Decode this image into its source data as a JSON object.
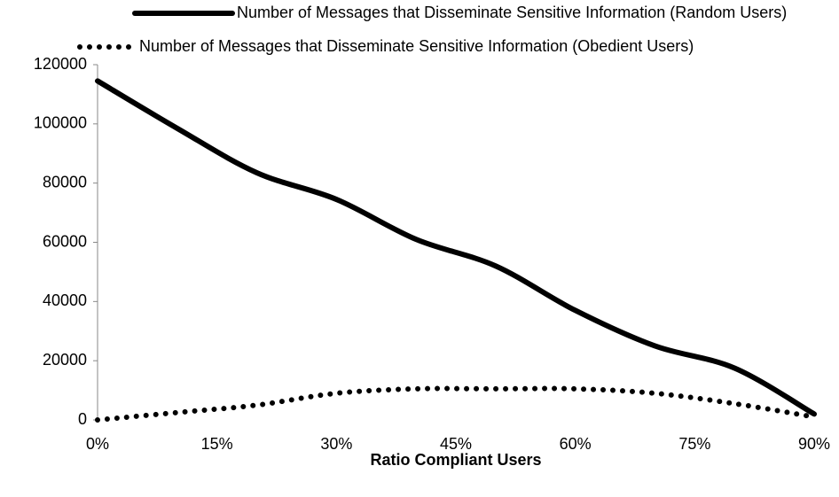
{
  "chart_data": {
    "type": "line",
    "xlabel": "Ratio Compliant Users",
    "x": [
      0,
      10,
      20,
      30,
      40,
      50,
      60,
      70,
      80,
      90
    ],
    "xlim": [
      0,
      90
    ],
    "xticks": [
      {
        "value": 0,
        "label": "0%"
      },
      {
        "value": 15,
        "label": "15%"
      },
      {
        "value": 30,
        "label": "30%"
      },
      {
        "value": 45,
        "label": "45%"
      },
      {
        "value": 60,
        "label": "60%"
      },
      {
        "value": 75,
        "label": "75%"
      },
      {
        "value": 90,
        "label": "90%"
      }
    ],
    "ylim": [
      0,
      120000
    ],
    "yticks": [
      0,
      20000,
      40000,
      60000,
      80000,
      100000,
      120000
    ],
    "series": [
      {
        "name": "Number of Messages that Disseminate Sensitive Information (Random Users)",
        "color": "#000000",
        "style": "solid",
        "values": [
          114500,
          98500,
          83500,
          74500,
          61000,
          52000,
          37000,
          25000,
          17500,
          2000
        ]
      },
      {
        "name": "Number of Messages that Disseminate Sensitive Information  (Obedient Users)",
        "color": "#000000",
        "style": "dotted",
        "values": [
          0,
          2500,
          5000,
          9000,
          10500,
          10500,
          10500,
          9000,
          5500,
          1000
        ]
      }
    ]
  }
}
